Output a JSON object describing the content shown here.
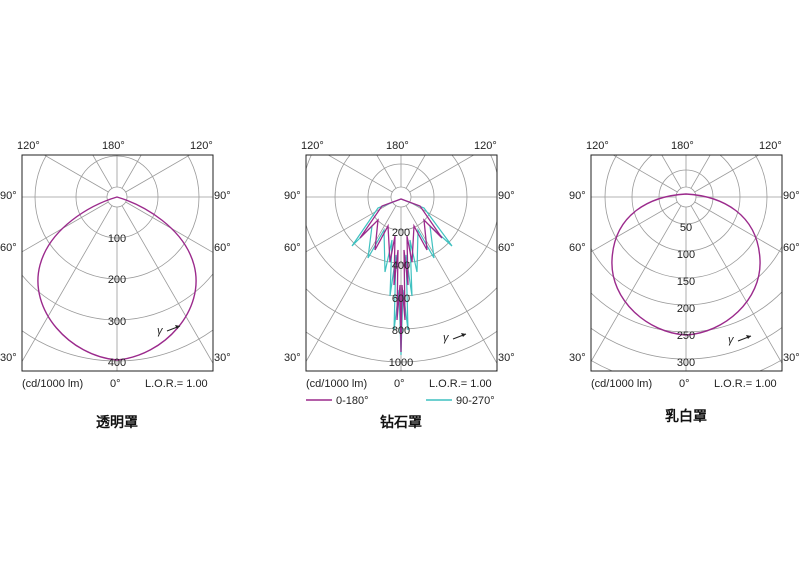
{
  "panels": [
    {
      "name": "transparent",
      "caption": "透明罩",
      "angles": {
        "top_left": "120°",
        "top_center": "180°",
        "top_right": "120°",
        "left_upper": "90°",
        "right_upper": "90°",
        "left_mid": "60°",
        "right_mid": "60°",
        "left_low": "30°",
        "right_low": "30°",
        "bottom": "0°"
      },
      "radial_labels": [
        "100",
        "200",
        "300",
        "400"
      ],
      "unit": "(cd/1000 lm)",
      "lor": "L.O.R.= 1.00",
      "gamma": "γ",
      "legend": [],
      "curve_color": "#9b2a8c"
    },
    {
      "name": "diamond",
      "caption": "钻石罩",
      "angles": {
        "top_left": "120°",
        "top_center": "180°",
        "top_right": "120°",
        "left_upper": "90°",
        "right_upper": "90°",
        "left_mid": "60°",
        "right_mid": "60°",
        "left_low": "30°",
        "right_low": "30°",
        "bottom": "0°"
      },
      "radial_labels": [
        "200",
        "400",
        "600",
        "800",
        "1000"
      ],
      "unit": "(cd/1000 lm)",
      "lor": "L.O.R.= 1.00",
      "gamma": "γ",
      "legend": [
        {
          "label": "0-180°",
          "color": "#9b2a8c"
        },
        {
          "label": "90-270°",
          "color": "#3fc1c0"
        }
      ],
      "curve_color": "#9b2a8c"
    },
    {
      "name": "milky",
      "caption": "乳白罩",
      "angles": {
        "top_left": "120°",
        "top_center": "180°",
        "top_right": "120°",
        "left_upper": "90°",
        "right_upper": "90°",
        "left_mid": "60°",
        "right_mid": "60°",
        "left_low": "30°",
        "right_low": "30°",
        "bottom": "0°"
      },
      "radial_labels": [
        "50",
        "100",
        "150",
        "200",
        "250",
        "300"
      ],
      "unit": "(cd/1000 lm)",
      "lor": "L.O.R.= 1.00",
      "gamma": "γ",
      "legend": [],
      "curve_color": "#9b2a8c"
    }
  ]
}
